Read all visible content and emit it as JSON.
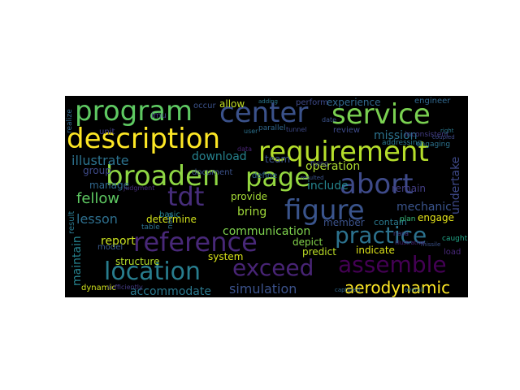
{
  "wordcloud": {
    "words": [
      {
        "text": "program",
        "color": "#5ec962"
      },
      {
        "text": "center",
        "color": "#3b528b"
      },
      {
        "text": "service",
        "color": "#7ad151"
      },
      {
        "text": "description",
        "color": "#fde725"
      },
      {
        "text": "requirement",
        "color": "#b5de2b"
      },
      {
        "text": "broaden",
        "color": "#8fd744"
      },
      {
        "text": "page",
        "color": "#95d840"
      },
      {
        "text": "abort",
        "color": "#3e4a89"
      },
      {
        "text": "tdt",
        "color": "#472d7b"
      },
      {
        "text": "figure",
        "color": "#3a548c"
      },
      {
        "text": "reference",
        "color": "#482878"
      },
      {
        "text": "practice",
        "color": "#2c728e"
      },
      {
        "text": "location",
        "color": "#287d8e"
      },
      {
        "text": "exceed",
        "color": "#482475"
      },
      {
        "text": "assemble",
        "color": "#440154"
      },
      {
        "text": "aerodynamic",
        "color": "#fde725"
      },
      {
        "text": "simulation",
        "color": "#3b528b"
      },
      {
        "text": "accommodate",
        "color": "#2a788e"
      },
      {
        "text": "communication",
        "color": "#7fd34e"
      },
      {
        "text": "illustrate",
        "color": "#2c728e"
      },
      {
        "text": "download",
        "color": "#26828e"
      },
      {
        "text": "mission",
        "color": "#2c728e"
      },
      {
        "text": "operation",
        "color": "#addc30"
      },
      {
        "text": "include",
        "color": "#25858e"
      },
      {
        "text": "fellow",
        "color": "#5ec962"
      },
      {
        "text": "lesson",
        "color": "#2e6f8e"
      },
      {
        "text": "bring",
        "color": "#a0da39"
      },
      {
        "text": "mechanic",
        "color": "#3a548c"
      },
      {
        "text": "team",
        "color": "#3b528b"
      },
      {
        "text": "allow",
        "color": "#c2df23"
      },
      {
        "text": "experience",
        "color": "#31688e"
      },
      {
        "text": "engineer",
        "color": "#31688e"
      },
      {
        "text": "undertake",
        "color": "#3e4989"
      },
      {
        "text": "remain",
        "color": "#433e85"
      },
      {
        "text": "provide",
        "color": "#a5db36"
      },
      {
        "text": "member",
        "color": "#3b528b"
      },
      {
        "text": "contain",
        "color": "#2a788e"
      },
      {
        "text": "determine",
        "color": "#d2e21b"
      },
      {
        "text": "report",
        "color": "#cae11f"
      },
      {
        "text": "structure",
        "color": "#b5de2b"
      },
      {
        "text": "system",
        "color": "#d8e219"
      },
      {
        "text": "depict",
        "color": "#84d44b"
      },
      {
        "text": "predict",
        "color": "#bddf26"
      },
      {
        "text": "indicate",
        "color": "#dde318"
      },
      {
        "text": "engage",
        "color": "#e5e419"
      },
      {
        "text": "plan",
        "color": "#37b878"
      },
      {
        "text": "maintain",
        "color": "#26828e"
      },
      {
        "text": "result",
        "color": "#2a788e"
      },
      {
        "text": "manage",
        "color": "#31688e"
      },
      {
        "text": "group",
        "color": "#3e4a89"
      },
      {
        "text": "unit",
        "color": "#424086"
      },
      {
        "text": "occur",
        "color": "#3b528b"
      },
      {
        "text": "imu",
        "color": "#433e85"
      },
      {
        "text": "review",
        "color": "#3e4a89"
      },
      {
        "text": "define",
        "color": "#31688e"
      },
      {
        "text": "document",
        "color": "#3b528b"
      },
      {
        "text": "model",
        "color": "#38598c"
      },
      {
        "text": "basic",
        "color": "#25848e"
      },
      {
        "text": "table",
        "color": "#2c728e"
      },
      {
        "text": "dynamic",
        "color": "#d0e11c"
      },
      {
        "text": "load",
        "color": "#482878"
      },
      {
        "text": "caught",
        "color": "#20a486"
      },
      {
        "text": "perform",
        "color": "#3e4989"
      },
      {
        "text": "parallel",
        "color": "#31688e"
      },
      {
        "text": "addressing",
        "color": "#2a788e"
      },
      {
        "text": "engaging",
        "color": "#2c728e"
      },
      {
        "text": "inconsistent",
        "color": "#433e85"
      },
      {
        "text": "note",
        "color": "#2e6f8e"
      },
      {
        "text": "judgment",
        "color": "#472d7b"
      },
      {
        "text": "sufficiently",
        "color": "#443983"
      },
      {
        "text": "missile",
        "color": "#3b528b"
      },
      {
        "text": "illustrative",
        "color": "#482475"
      },
      {
        "text": "captured",
        "color": "#31688e"
      },
      {
        "text": "coupled",
        "color": "#3e4a89"
      },
      {
        "text": "right",
        "color": "#2a788e"
      },
      {
        "text": "resulted",
        "color": "#3b528b"
      },
      {
        "text": "user",
        "color": "#2c728e"
      },
      {
        "text": "tunnel",
        "color": "#3e4989"
      },
      {
        "text": "nasa",
        "color": "#433e85"
      },
      {
        "text": "data",
        "color": "#482475"
      },
      {
        "text": "flying",
        "color": "#3e4989"
      },
      {
        "text": "date",
        "color": "#3b528b"
      },
      {
        "text": "overall",
        "color": "#2c728e"
      },
      {
        "text": "adding",
        "color": "#2a788e"
      },
      {
        "text": "realize",
        "color": "#31688e"
      }
    ]
  }
}
